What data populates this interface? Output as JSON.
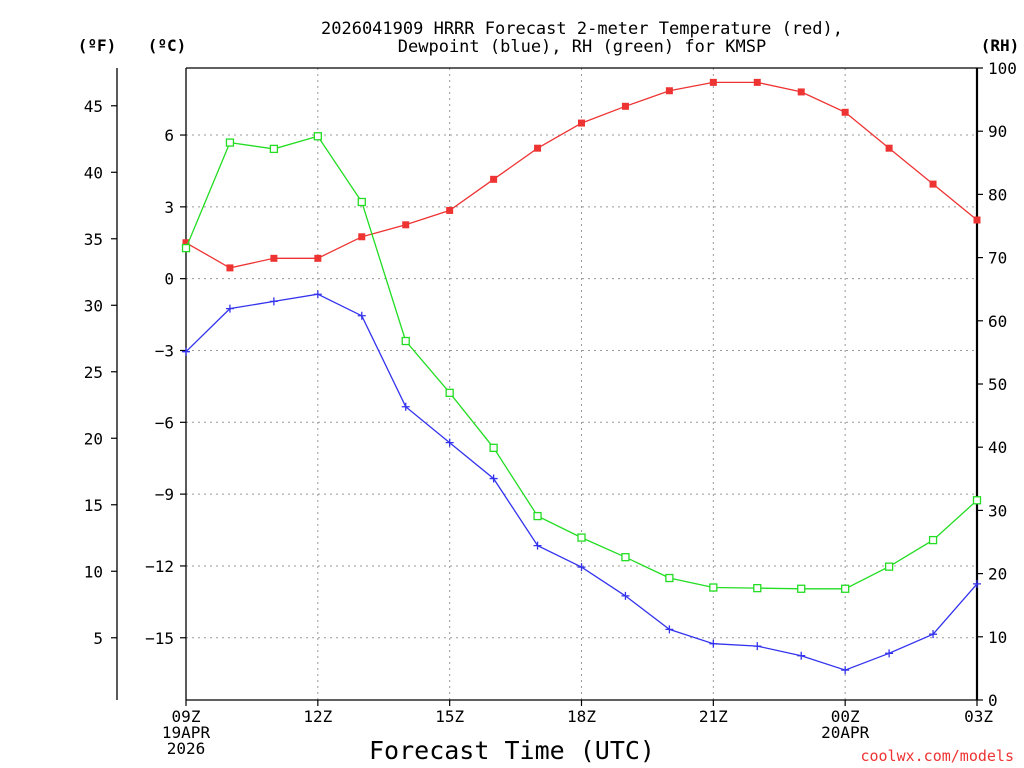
{
  "chart_data": {
    "type": "line",
    "title": "2026041909 HRRR Forecast 2-meter Temperature (red),",
    "subtitle": "Dewpoint (blue), RH (green) for KMSP",
    "xlabel": "Forecast Time (UTC)",
    "credit": "coolwx.com/models",
    "units": {
      "fahrenheit": "(ºF)",
      "celsius": "(ºC)",
      "rh": "(RH)"
    },
    "x": [
      0,
      1,
      2,
      3,
      4,
      5,
      6,
      7,
      8,
      9,
      10,
      11,
      12,
      13,
      14,
      15,
      16,
      17,
      18
    ],
    "xlim": [
      0,
      18
    ],
    "x_ticks": [
      {
        "x": 0,
        "lines": [
          "09Z",
          "19APR",
          "2026"
        ]
      },
      {
        "x": 3,
        "lines": [
          "12Z"
        ]
      },
      {
        "x": 6,
        "lines": [
          "15Z"
        ]
      },
      {
        "x": 9,
        "lines": [
          "18Z"
        ]
      },
      {
        "x": 12,
        "lines": [
          "21Z"
        ]
      },
      {
        "x": 15,
        "lines": [
          "00Z",
          "20APR"
        ]
      },
      {
        "x": 18,
        "lines": [
          "03Z"
        ]
      }
    ],
    "celsius_axis": {
      "ylim": [
        -17.6,
        8.8
      ],
      "ticks": [
        6,
        3,
        0,
        -3,
        -6,
        -9,
        -12,
        -15
      ],
      "tick_labels": [
        "6",
        "3",
        "0",
        "−3",
        "−6",
        "−9",
        "−12",
        "−15"
      ]
    },
    "fahrenheit_axis": {
      "ylim": [
        0.32,
        47.84
      ],
      "ticks": [
        45,
        40,
        35,
        30,
        25,
        20,
        15,
        10,
        5
      ],
      "tick_labels": [
        "45",
        "40",
        "35",
        "30",
        "25",
        "20",
        "15",
        "10",
        "5"
      ]
    },
    "rh_axis": {
      "ylim": [
        0,
        100
      ],
      "ticks": [
        0,
        10,
        20,
        30,
        40,
        50,
        60,
        70,
        80,
        90,
        100
      ],
      "tick_labels": [
        "0",
        "10",
        "20",
        "30",
        "40",
        "50",
        "60",
        "70",
        "80",
        "90",
        "100"
      ]
    },
    "series": [
      {
        "name": "Temperature",
        "unit": "C",
        "color": "#ee3333",
        "marker": "filled-square",
        "values": [
          1.5,
          0.45,
          0.85,
          0.85,
          1.75,
          2.25,
          2.85,
          4.15,
          5.45,
          6.5,
          7.2,
          7.85,
          8.2,
          8.2,
          7.8,
          6.95,
          5.45,
          3.95,
          2.45
        ]
      },
      {
        "name": "Dewpoint",
        "unit": "C",
        "color": "#3333ee",
        "marker": "plus",
        "values": [
          -3.05,
          -1.25,
          -0.95,
          -0.65,
          -1.55,
          -5.35,
          -6.85,
          -8.35,
          -11.15,
          -12.05,
          -13.25,
          -14.65,
          -15.25,
          -15.35,
          -15.75,
          -16.35,
          -15.65,
          -14.85,
          -12.75
        ]
      },
      {
        "name": "RH",
        "unit": "%",
        "color": "#22dd22",
        "marker": "open-square",
        "values": [
          71.5,
          88.2,
          87.2,
          89.2,
          78.8,
          56.8,
          48.6,
          39.9,
          29.1,
          25.7,
          22.6,
          19.3,
          17.8,
          17.7,
          17.6,
          17.6,
          21.1,
          25.3,
          31.6
        ]
      }
    ]
  }
}
